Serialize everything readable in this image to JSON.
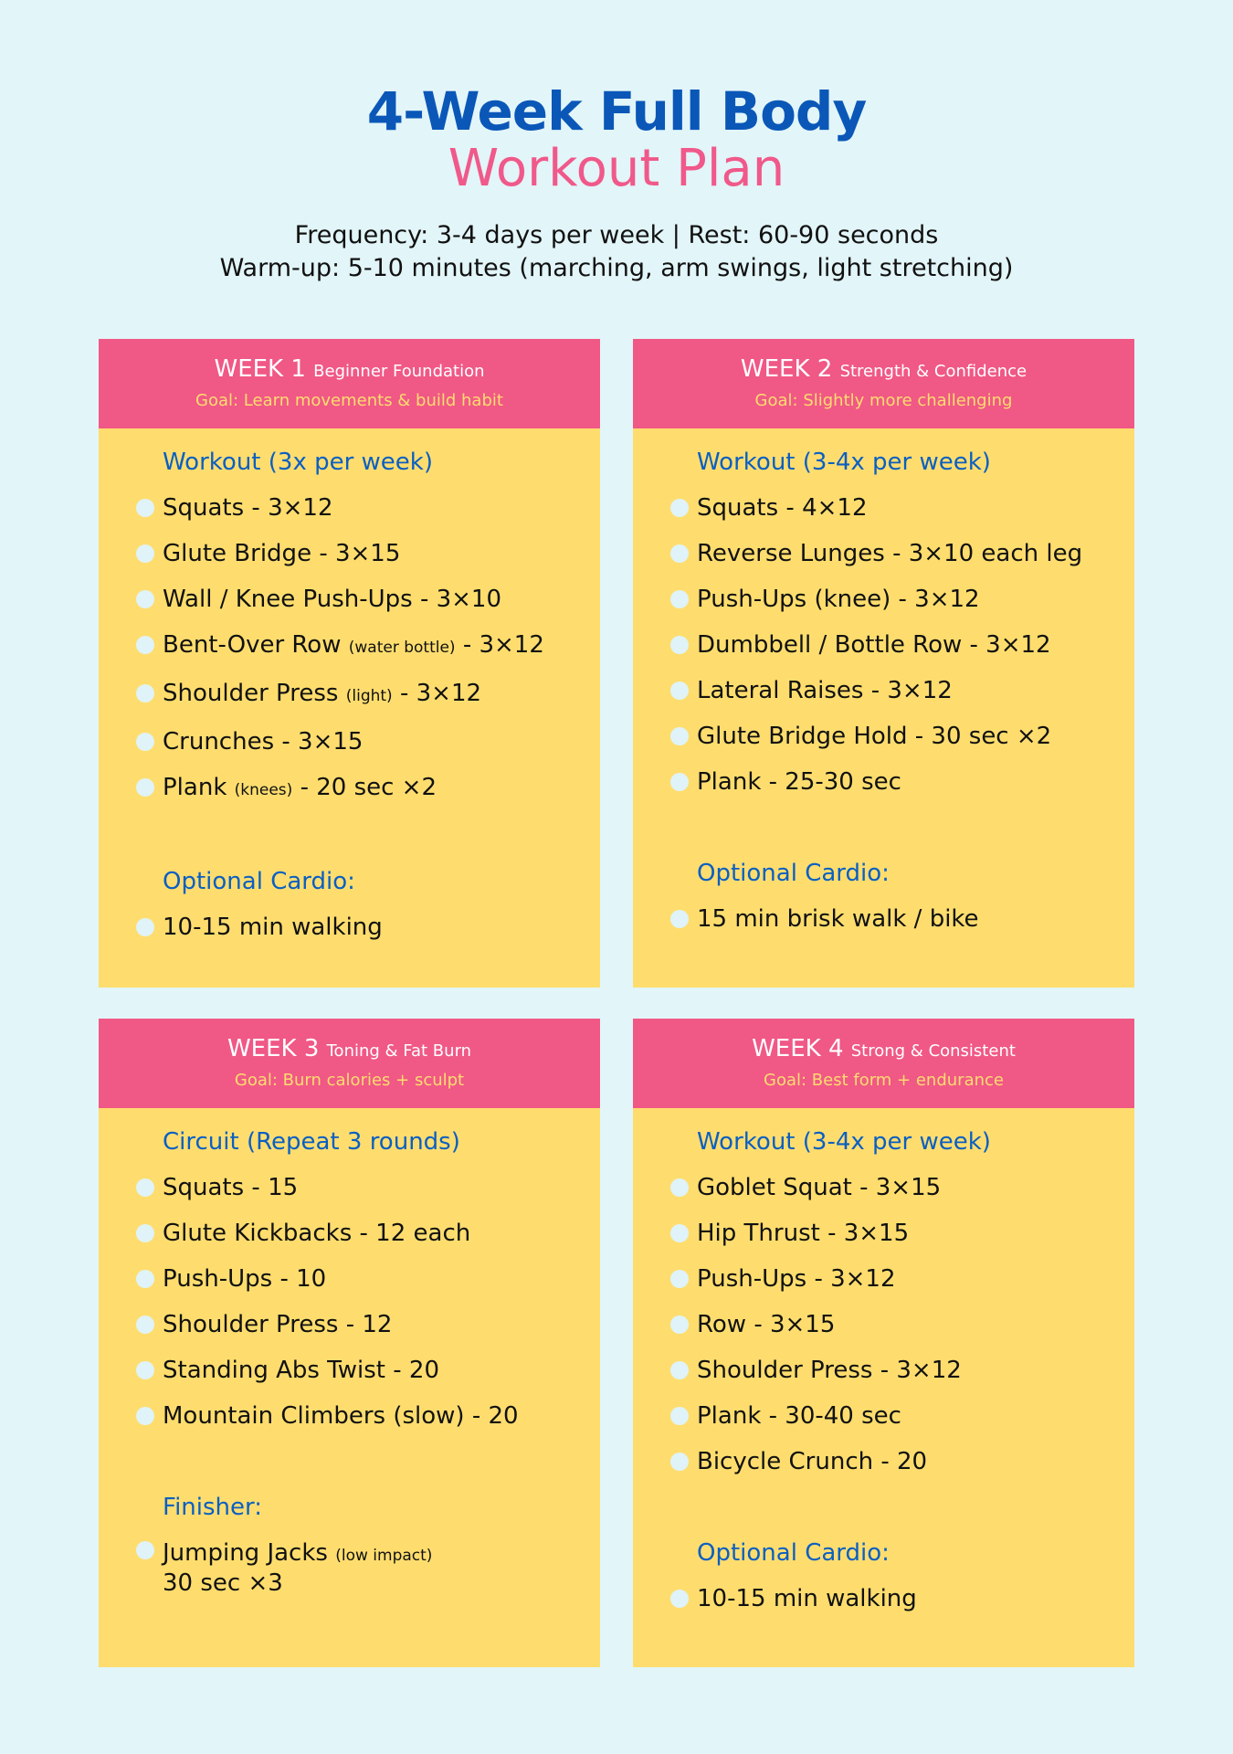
{
  "title": {
    "line1": "4-Week Full Body",
    "line2": "Workout Plan"
  },
  "info": {
    "line1": "Frequency: 3-4 days per week | Rest: 60-90 seconds",
    "line2": "Warm-up: 5-10 minutes (marching, arm swings, light stretching)"
  },
  "colors": {
    "background": "#e2f5f8",
    "header": "#f05886",
    "card": "#fedd6e",
    "heading": "#0a5fc2",
    "title": "#0a57b8",
    "accent": "#f0598a"
  },
  "weeks": [
    {
      "week": "WEEK 1",
      "subtitle": "Beginner Foundation",
      "goal": "Goal: Learn movements & build habit",
      "sections": [
        {
          "heading": "Workout (3x per week)",
          "items": [
            {
              "main": "Squats - 3×12"
            },
            {
              "main": "Glute Bridge - 3×15"
            },
            {
              "main": "Wall / Knee Push-Ups - 3×10"
            },
            {
              "main": "Bent-Over Row ",
              "note": "(water bottle)",
              "rest": " - 3×12"
            },
            {
              "main": "Shoulder Press ",
              "note": "(light)",
              "rest": " - 3×12"
            },
            {
              "main": "Crunches - 3×15"
            },
            {
              "main": "Plank ",
              "note": "(knees)",
              "rest": " - 20 sec ×2"
            }
          ]
        },
        {
          "heading": "Optional Cardio:",
          "items": [
            {
              "main": "10-15 min walking"
            }
          ]
        }
      ]
    },
    {
      "week": "WEEK 2",
      "subtitle": "Strength & Confidence",
      "goal": "Goal: Slightly more challenging",
      "sections": [
        {
          "heading": "Workout (3-4x per week)",
          "items": [
            {
              "main": "Squats - 4×12"
            },
            {
              "main": "Reverse Lunges - 3×10 each leg"
            },
            {
              "main": "Push-Ups (knee) - 3×12"
            },
            {
              "main": "Dumbbell / Bottle Row - 3×12"
            },
            {
              "main": "Lateral Raises - 3×12"
            },
            {
              "main": "Glute Bridge Hold - 30 sec ×2"
            },
            {
              "main": "Plank - 25-30 sec"
            }
          ]
        },
        {
          "heading": "Optional Cardio:",
          "items": [
            {
              "main": "15 min brisk walk / bike"
            }
          ]
        }
      ]
    },
    {
      "week": "WEEK 3",
      "subtitle": "Toning & Fat Burn",
      "goal": "Goal: Burn calories + sculpt",
      "sections": [
        {
          "heading": "Circuit (Repeat 3 rounds)",
          "items": [
            {
              "main": "Squats - 15"
            },
            {
              "main": "Glute Kickbacks - 12 each"
            },
            {
              "main": "Push-Ups - 10"
            },
            {
              "main": "Shoulder Press - 12"
            },
            {
              "main": "Standing Abs Twist - 20"
            },
            {
              "main": "Mountain Climbers (slow) - 20"
            }
          ]
        },
        {
          "heading": "Finisher:",
          "items": [
            {
              "main": "Jumping Jacks ",
              "note": "(low impact)",
              "line2": "30 sec ×3"
            }
          ]
        }
      ]
    },
    {
      "week": "WEEK 4",
      "subtitle": "Strong & Consistent",
      "goal": "Goal: Best form + endurance",
      "sections": [
        {
          "heading": "Workout (3-4x per week)",
          "items": [
            {
              "main": "Goblet Squat - 3×15"
            },
            {
              "main": "Hip Thrust - 3×15"
            },
            {
              "main": "Push-Ups - 3×12"
            },
            {
              "main": "Row - 3×15"
            },
            {
              "main": "Shoulder Press - 3×12"
            },
            {
              "main": "Plank - 30-40 sec"
            },
            {
              "main": "Bicycle Crunch - 20"
            }
          ]
        },
        {
          "heading": "Optional Cardio:",
          "items": [
            {
              "main": "10-15 min walking"
            }
          ]
        }
      ]
    }
  ]
}
